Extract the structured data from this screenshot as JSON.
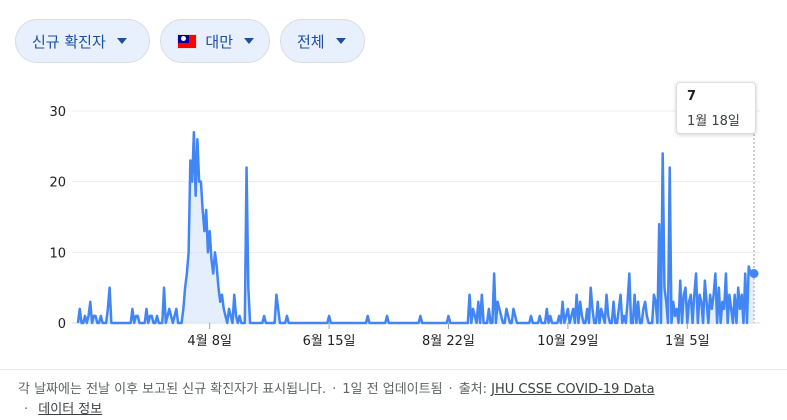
{
  "filters": {
    "metric": "신규 확진자",
    "country": "대만",
    "range": "전체"
  },
  "tooltip": {
    "value": "7",
    "date": "1월 18일"
  },
  "footer": {
    "description": "각 날짜에는 전날 이후 보고된 신규 확진자가 표시됩니다.",
    "updated": "1일 전 업데이트됨",
    "source_label": "출처:",
    "source_link": "JHU CSSE COVID-19 Data",
    "info_link": "데이터 정보"
  },
  "colors": {
    "line": "#4285f4",
    "area": "#d2e3fc",
    "chip_bg": "#e8f0fe",
    "chip_text": "#1a4fa3"
  },
  "chart_data": {
    "type": "area",
    "title": "",
    "xlabel": "",
    "ylabel": "",
    "ylim": [
      0,
      30
    ],
    "y_ticks": [
      0,
      10,
      20,
      30
    ],
    "x_tick_labels": [
      "4월 8일",
      "6월 15일",
      "8월 22일",
      "10월 29일",
      "1월 5일"
    ],
    "x_tick_days": [
      75,
      143,
      211,
      279,
      347
    ],
    "start_date": "2020-01-22",
    "end_date": "2021-01-18",
    "grid": true,
    "series": [
      {
        "values": [
          0,
          2,
          0,
          0,
          1,
          0,
          1,
          3,
          0,
          1,
          1,
          0,
          0,
          1,
          0,
          0,
          0,
          2,
          5,
          0,
          0,
          0,
          0,
          0,
          0,
          0,
          0,
          0,
          0,
          0,
          0,
          2,
          0,
          1,
          1,
          0,
          0,
          0,
          0,
          2,
          0,
          1,
          1,
          0,
          0,
          1,
          0,
          0,
          0,
          5,
          0,
          1,
          2,
          1,
          0,
          1,
          2,
          0,
          0,
          0,
          2,
          5,
          7,
          10,
          23,
          20,
          27,
          18,
          26,
          20,
          20,
          16,
          13,
          16,
          10,
          13,
          9,
          7,
          10,
          8,
          5,
          3,
          4,
          2,
          1,
          0,
          2,
          1,
          0,
          4,
          1,
          0,
          1,
          0,
          0,
          0,
          22,
          5,
          0,
          0,
          0,
          0,
          0,
          0,
          0,
          0,
          1,
          0,
          0,
          0,
          0,
          0,
          0,
          4,
          2,
          0,
          0,
          0,
          0,
          1,
          0,
          0,
          0,
          0,
          0,
          0,
          0,
          0,
          0,
          0,
          0,
          0,
          0,
          0,
          0,
          0,
          0,
          0,
          0,
          0,
          0,
          0,
          0,
          1,
          0,
          0,
          0,
          0,
          0,
          0,
          0,
          0,
          0,
          0,
          0,
          0,
          0,
          0,
          0,
          0,
          0,
          0,
          0,
          0,
          0,
          1,
          0,
          0,
          0,
          0,
          0,
          0,
          0,
          0,
          0,
          0,
          1,
          0,
          0,
          0,
          0,
          0,
          0,
          0,
          0,
          0,
          0,
          0,
          0,
          0,
          0,
          0,
          0,
          0,
          0,
          1,
          0,
          0,
          0,
          0,
          0,
          0,
          0,
          0,
          0,
          0,
          0,
          0,
          0,
          0,
          0,
          1,
          0,
          0,
          0,
          0,
          0,
          0,
          0,
          0,
          0,
          0,
          0,
          4,
          0,
          2,
          1,
          0,
          3,
          0,
          4,
          0,
          0,
          0,
          2,
          0,
          0,
          7,
          0,
          3,
          2,
          1,
          0,
          0,
          2,
          1,
          0,
          0,
          2,
          1,
          0,
          0,
          0,
          0,
          0,
          0,
          0,
          0,
          1,
          0,
          0,
          0,
          0,
          1,
          0,
          0,
          0,
          2,
          0,
          1,
          0,
          0,
          0,
          0,
          1,
          0,
          3,
          0,
          1,
          2,
          0,
          1,
          2,
          0,
          4,
          0,
          3,
          1,
          0,
          0,
          2,
          0,
          5,
          2,
          0,
          0,
          3,
          0,
          2,
          1,
          0,
          4,
          1,
          0,
          0,
          3,
          0,
          0,
          2,
          4,
          0,
          1,
          0,
          3,
          7,
          0,
          0,
          4,
          0,
          3,
          0,
          0,
          2,
          3,
          1,
          0,
          0,
          0,
          4,
          3,
          0,
          14,
          0,
          24,
          5,
          3,
          0,
          22,
          0,
          3,
          1,
          2,
          0,
          6,
          0,
          4,
          5,
          0,
          3,
          4,
          0,
          4,
          7,
          0,
          4,
          3,
          0,
          6,
          3,
          0,
          4,
          2,
          4,
          7,
          0,
          5,
          0,
          3,
          2,
          7,
          0,
          4,
          2,
          0,
          4,
          0,
          5,
          2,
          4,
          0,
          7,
          0,
          8,
          7,
          7,
          7
        ]
      }
    ]
  }
}
